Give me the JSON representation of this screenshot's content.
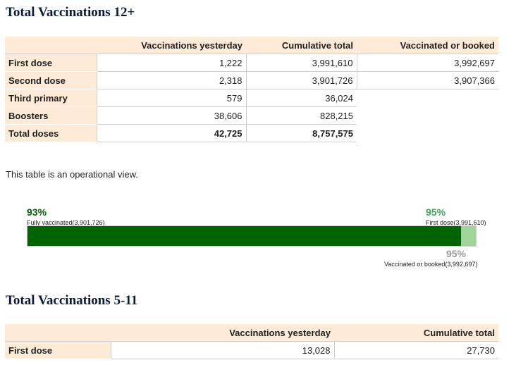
{
  "section1": {
    "title": "Total Vaccinations 12+",
    "headers": [
      "Vaccinations yesterday",
      "Cumulative total",
      "Vaccinated or booked"
    ],
    "rows": [
      {
        "label": "First dose",
        "yesterday": "1,222",
        "cumulative": "3,991,610",
        "booked": "3,992,697"
      },
      {
        "label": "Second dose",
        "yesterday": "2,318",
        "cumulative": "3,901,726",
        "booked": "3,907,366"
      },
      {
        "label": "Third primary",
        "yesterday": "579",
        "cumulative": "36,024",
        "booked": ""
      },
      {
        "label": "Boosters",
        "yesterday": "38,606",
        "cumulative": "828,215",
        "booked": ""
      },
      {
        "label": "Total doses",
        "yesterday": "42,725",
        "cumulative": "8,757,575",
        "booked": ""
      }
    ]
  },
  "note": "This table is an operational view.",
  "progress": {
    "fully_pct_label": "93%",
    "fully_caption": "Fully vaccinated(3,901,726)",
    "fully_fraction": 0.93,
    "first_pct_label": "95%",
    "first_caption": "First dose(3,991,610)",
    "first_fraction": 0.95,
    "booked_pct_label": "95%",
    "booked_caption": "Vaccinated or booked(3,992,697)",
    "booked_fraction": 0.95,
    "colors": {
      "fully": "#006400",
      "first": "#9fd49a",
      "booked_outline": "#cccccc",
      "first_text": "#3aa85a",
      "booked_text": "#999999"
    }
  },
  "section2": {
    "title": "Total Vaccinations 5-11",
    "headers": [
      "Vaccinations yesterday",
      "Cumulative total"
    ],
    "rows": [
      {
        "label": "First dose",
        "yesterday": "13,028",
        "cumulative": "27,730"
      }
    ]
  }
}
